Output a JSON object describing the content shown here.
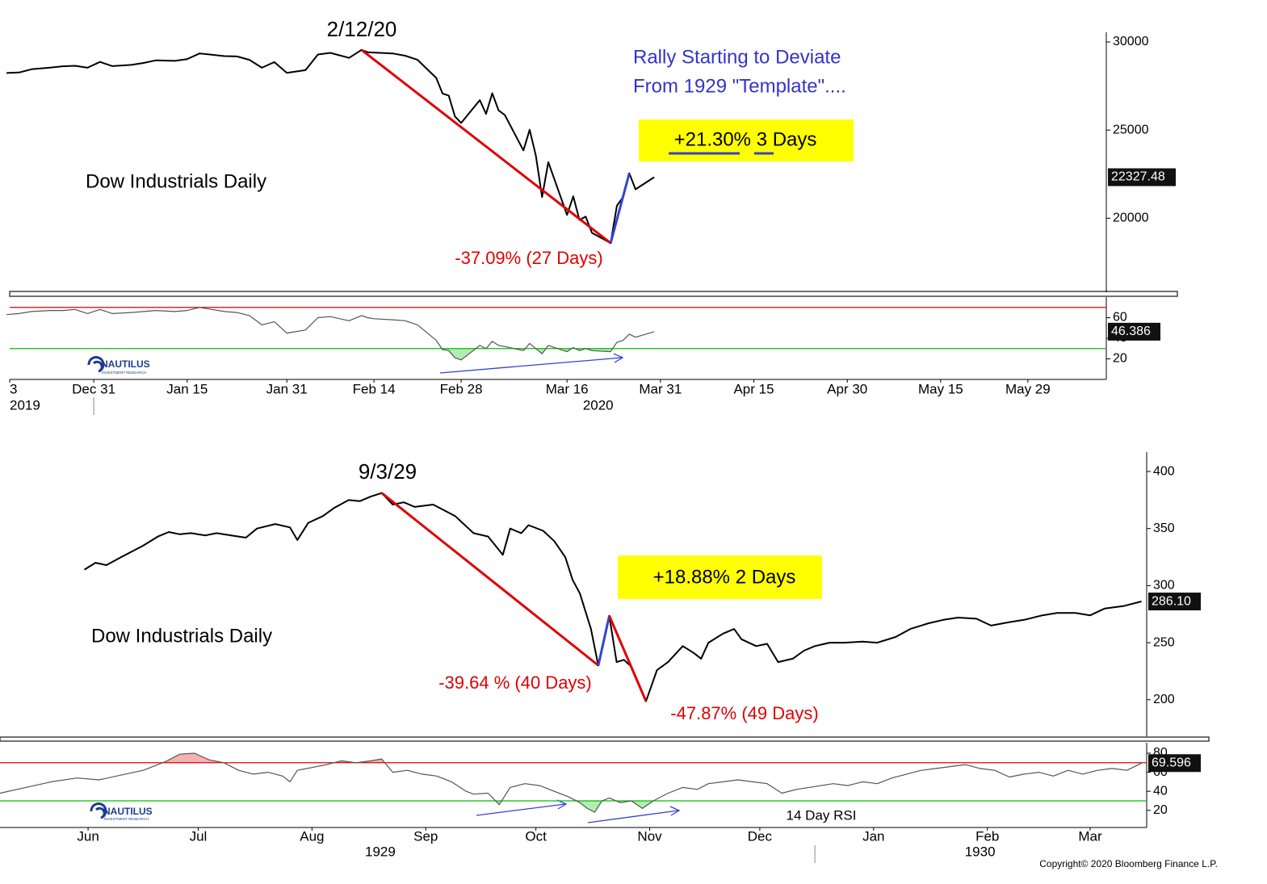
{
  "chart_data": [
    {
      "type": "line",
      "annotations": [
        {
          "text": "2/12/20",
          "color": "#000000"
        },
        {
          "text": "Rally Starting to Deviate",
          "color": "#3333cc"
        },
        {
          "text": "From 1929 \"Template\"....",
          "color": "#3333cc"
        },
        {
          "text": "+21.30% 3 Days",
          "color": "#000000"
        },
        {
          "text": "Dow Industrials Daily",
          "color": "#000000"
        },
        {
          "text": "-37.09% (27 Days)",
          "color": "#e00000"
        }
      ],
      "xlim": [
        -13.5,
        162.6
      ],
      "x": [
        -14,
        -12,
        -10,
        -7,
        -5,
        -3,
        -1,
        1,
        3,
        6,
        8,
        10,
        13,
        15,
        17,
        21,
        23,
        25,
        27,
        29,
        31,
        34,
        36,
        38,
        41,
        43,
        44,
        45,
        48,
        50,
        52,
        55,
        56,
        57,
        58,
        59,
        62,
        63,
        64,
        65,
        66,
        69,
        70,
        71,
        72,
        73,
        76,
        77,
        78,
        79,
        80,
        83,
        84,
        85,
        86,
        87,
        90
      ],
      "series": [
        {
          "color": "#000000",
          "values": [
            28240,
            28270,
            28450,
            28550,
            28620,
            28650,
            28540,
            28870,
            28630,
            28700,
            28810,
            28960,
            28930,
            29030,
            29350,
            29200,
            29180,
            28990,
            28540,
            28860,
            28250,
            28400,
            29290,
            29380,
            29100,
            29550,
            29420,
            29400,
            29350,
            29220,
            28990,
            27960,
            27080,
            26960,
            25770,
            25410,
            26700,
            25920,
            27090,
            26120,
            25860,
            23850,
            25020,
            23550,
            21200,
            23185,
            20190,
            21240,
            19900,
            20090,
            19170,
            18590,
            20700,
            21200,
            22550,
            21640,
            22327.48
          ]
        }
      ],
      "trendlines": [
        {
          "color": "#e00000",
          "x": [
            43,
            83
          ],
          "y": [
            29550,
            18590
          ]
        },
        {
          "color": "#3344cc",
          "x": [
            83,
            86
          ],
          "y": [
            18590,
            22550
          ]
        }
      ],
      "ylim": [
        15800,
        30550
      ],
      "yticks": [
        20000,
        25000,
        30000
      ]
    },
    {
      "type": "line",
      "xlim": [
        -13.5,
        162.6
      ],
      "x": [
        -14,
        -12,
        -10,
        -7,
        -5,
        -3,
        -1,
        1,
        3,
        6,
        8,
        10,
        13,
        15,
        17,
        21,
        23,
        25,
        27,
        29,
        31,
        34,
        36,
        38,
        41,
        43,
        44,
        45,
        48,
        50,
        52,
        55,
        56,
        57,
        58,
        59,
        62,
        63,
        64,
        65,
        66,
        69,
        70,
        71,
        72,
        73,
        76,
        77,
        78,
        79,
        80,
        83,
        84,
        85,
        86,
        87,
        90
      ],
      "series": [
        {
          "color": "#555555",
          "values": [
            63,
            64,
            66,
            67,
            67,
            68,
            64,
            68,
            64,
            65,
            66,
            67,
            66,
            67,
            70,
            66,
            65,
            62,
            53,
            56,
            45,
            48,
            60,
            61,
            57,
            62,
            60,
            59,
            58,
            57,
            53,
            38,
            29,
            28,
            21,
            19,
            33,
            30,
            37,
            33,
            32,
            28,
            35,
            30,
            25,
            33,
            27,
            31,
            28,
            30,
            28,
            27,
            36,
            38,
            44,
            41,
            46.386
          ]
        }
      ],
      "hlines": [
        {
          "value": 70,
          "color": "#e00000",
          "fill": "above"
        },
        {
          "value": 30,
          "color": "#00c000",
          "fill": "below"
        }
      ],
      "ylim": [
        0,
        80
      ],
      "yticks": [
        20,
        40,
        60
      ],
      "xticks": [
        {
          "value": -13.5,
          "label": "3"
        },
        {
          "value": 0,
          "label": "Dec 31"
        },
        {
          "value": 15,
          "label": "Jan 15"
        },
        {
          "value": 31,
          "label": "Jan 31"
        },
        {
          "value": 45,
          "label": "Feb 14"
        },
        {
          "value": 59,
          "label": "Feb 28"
        },
        {
          "value": 76,
          "label": "Mar 16"
        },
        {
          "value": 91,
          "label": "Mar 31"
        },
        {
          "value": 106,
          "label": "Apr 15"
        },
        {
          "value": 121,
          "label": "Apr 30"
        },
        {
          "value": 136,
          "label": "May 15"
        },
        {
          "value": 150,
          "label": "May 29"
        }
      ],
      "year_labels": [
        {
          "value": -13.5,
          "label": "2019"
        },
        {
          "value": 81,
          "label": "2020"
        }
      ],
      "xdivider": 0,
      "logo": {
        "name": "NAUTILUS",
        "tagline": "INVESTMENT RESEARCH"
      }
    },
    {
      "type": "line",
      "annotations": [
        {
          "text": "9/3/29",
          "color": "#000000"
        },
        {
          "text": "+18.88% 2 Days",
          "color": "#000000"
        },
        {
          "text": "Dow Industrials Daily",
          "color": "#000000"
        },
        {
          "text": "-39.64 % (40 Days)",
          "color": "#e00000"
        },
        {
          "text": "-47.87% (49 Days)",
          "color": "#e00000"
        }
      ],
      "xlim": [
        -9,
        303.4
      ],
      "x": [
        14,
        17,
        20,
        24,
        27,
        30,
        34,
        37,
        40,
        43,
        47,
        50,
        54,
        58,
        61,
        66,
        70,
        72,
        75,
        79,
        82,
        86,
        89,
        92,
        95,
        98,
        101,
        104,
        109,
        112,
        115,
        120,
        124,
        128,
        130,
        133,
        135,
        139,
        142,
        145,
        147,
        149,
        152,
        154,
        157,
        159,
        161,
        163,
        167,
        170,
        173,
        177,
        180,
        182,
        184,
        188,
        191,
        193,
        197,
        200,
        203,
        207,
        210,
        213,
        217,
        221,
        226,
        230,
        235,
        239,
        244,
        248,
        252,
        257,
        261,
        266,
        270,
        275,
        279,
        284,
        288,
        292,
        297,
        302
      ],
      "series": [
        {
          "color": "#000000",
          "values": [
            314,
            320,
            318,
            325,
            330,
            335,
            343,
            347,
            345,
            346,
            344,
            346,
            344,
            342,
            350,
            354,
            351,
            340,
            355,
            361,
            368,
            375,
            374,
            378,
            381.17,
            371,
            373,
            369,
            371,
            366,
            361,
            346,
            343,
            327,
            350,
            346,
            353,
            348,
            339,
            325,
            305,
            293,
            262,
            230.07,
            273.51,
            233,
            235,
            229,
            198.69,
            226,
            233,
            247,
            241,
            236,
            250,
            258,
            262,
            253,
            247,
            249,
            233,
            236,
            243,
            247,
            250,
            250,
            251,
            250,
            255,
            262,
            267,
            270,
            272,
            271,
            265,
            268,
            270,
            274,
            276,
            276,
            274,
            280,
            282,
            286.1
          ],
          "value_labels": [
            null,
            null,
            null,
            null,
            null,
            null,
            null,
            null,
            null,
            null,
            null,
            null,
            null,
            null,
            null,
            null,
            null,
            null,
            null,
            null,
            null,
            null,
            null,
            null,
            null,
            null,
            null,
            null,
            null,
            null,
            null,
            null,
            null,
            null,
            null,
            null,
            null,
            null,
            null,
            null,
            null,
            null,
            null,
            null,
            null,
            null,
            null,
            null,
            null,
            null,
            null,
            null,
            null,
            null,
            null,
            null,
            null,
            null,
            null,
            null,
            null,
            null,
            null,
            null,
            null,
            null,
            null,
            null,
            null,
            null,
            null,
            null,
            null,
            null,
            null,
            null,
            null,
            null,
            null,
            null,
            null,
            null,
            null,
            "286.10"
          ]
        }
      ],
      "trendlines": [
        {
          "color": "#e00000",
          "x": [
            95,
            154
          ],
          "y": [
            381.17,
            230.07
          ]
        },
        {
          "color": "#3344cc",
          "x": [
            154,
            157
          ],
          "y": [
            230.07,
            273.51
          ]
        },
        {
          "color": "#e00000",
          "x": [
            157,
            167
          ],
          "y": [
            273.51,
            198.69
          ]
        }
      ],
      "ylim": [
        168,
        417
      ],
      "yticks": [
        200,
        250,
        300,
        350,
        400
      ]
    },
    {
      "type": "line",
      "annotations": [
        {
          "text": "14 Day RSI",
          "color": "#000000"
        }
      ],
      "xlim": [
        -9,
        303.4
      ],
      "x": [
        -9,
        -2,
        5,
        12,
        18,
        24,
        30,
        36,
        40,
        44,
        48,
        52,
        56,
        60,
        64,
        68,
        70,
        72,
        76,
        80,
        84,
        88,
        92,
        95,
        98,
        102,
        106,
        110,
        114,
        118,
        120,
        124,
        127,
        130,
        134,
        138,
        142,
        146,
        149,
        151,
        153,
        155,
        157,
        160,
        163,
        166,
        169,
        173,
        177,
        181,
        184,
        188,
        192,
        196,
        200,
        204,
        208,
        213,
        218,
        222,
        226,
        230,
        234,
        238,
        242,
        246,
        250,
        254,
        258,
        262,
        266,
        270,
        274,
        278,
        282,
        286,
        290,
        294,
        298,
        302
      ],
      "series": [
        {
          "color": "#555555",
          "values": [
            38,
            44,
            50,
            54,
            52,
            57,
            62,
            71,
            79,
            80,
            73,
            70,
            62,
            58,
            60,
            56,
            50,
            62,
            65,
            68,
            72,
            70,
            72,
            74,
            60,
            62,
            58,
            56,
            50,
            40,
            37,
            38,
            26,
            44,
            48,
            46,
            40,
            34,
            28,
            22,
            18,
            30,
            33,
            28,
            30,
            22,
            30,
            38,
            44,
            42,
            48,
            50,
            52,
            50,
            48,
            38,
            42,
            45,
            48,
            46,
            50,
            48,
            54,
            58,
            62,
            64,
            66,
            68,
            64,
            62,
            55,
            58,
            60,
            56,
            62,
            58,
            62,
            64,
            62,
            69.596
          ]
        }
      ],
      "hlines": [
        {
          "value": 70,
          "color": "#e00000",
          "fill": "above"
        },
        {
          "value": 30,
          "color": "#00c000",
          "fill": "below"
        }
      ],
      "ylim": [
        2,
        91
      ],
      "yticks": [
        20,
        40,
        60,
        80
      ],
      "xticks": [
        {
          "value": 15,
          "label": "Jun"
        },
        {
          "value": 45,
          "label": "Jul"
        },
        {
          "value": 76,
          "label": "Aug"
        },
        {
          "value": 107,
          "label": "Sep"
        },
        {
          "value": 137,
          "label": "Oct"
        },
        {
          "value": 168,
          "label": "Nov"
        },
        {
          "value": 198,
          "label": "Dec"
        },
        {
          "value": 229,
          "label": "Jan"
        },
        {
          "value": 260,
          "label": "Feb"
        },
        {
          "value": 288,
          "label": "Mar"
        }
      ],
      "year_labels": [
        {
          "value": 94.6,
          "label": "1929"
        },
        {
          "value": 258,
          "label": "1930"
        }
      ],
      "xdivider": 213,
      "logo": {
        "name": "NAUTILUS",
        "tagline": "INVESTMENT RESEARCH"
      }
    }
  ],
  "copyright": "Copyright© 2020 Bloomberg Finance L.P."
}
